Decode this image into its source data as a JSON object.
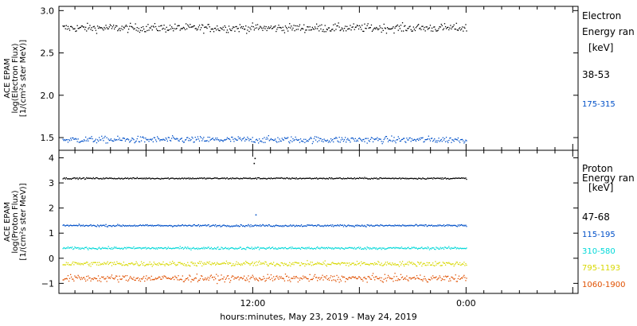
{
  "chart_data": [
    {
      "type": "scatter",
      "panel": "electron",
      "ylabel_lines": [
        "ACE EPAM",
        "log(Electron Flux)",
        "[1/(cm²s ster MeV)]"
      ],
      "ylim": [
        1.35,
        3.05
      ],
      "yticks": [
        {
          "value": 3.0,
          "label": "3.0"
        },
        {
          "value": 2.5,
          "label": "2.5"
        },
        {
          "value": 2.0,
          "label": "2.0"
        },
        {
          "value": 1.5,
          "label": "1.5"
        }
      ],
      "legend": {
        "title_lines": [
          "Electron",
          "Energy ran",
          "[keV]"
        ],
        "placement": "right"
      },
      "series": [
        {
          "name": "38-53",
          "color": "#000000",
          "mean": 2.8,
          "noise": 0.05,
          "x_end_hour": 24.0
        },
        {
          "name": "175-315",
          "color": "#0050c8",
          "mean": 1.48,
          "noise": 0.04,
          "x_end_hour": 24.0
        }
      ]
    },
    {
      "type": "scatter",
      "panel": "proton",
      "ylabel_lines": [
        "ACE EPAM",
        "log(Proton Flux)",
        "[1/(cm²s ster MeV)]"
      ],
      "ylim": [
        -1.4,
        4.3
      ],
      "yticks": [
        {
          "value": 4,
          "label": "4"
        },
        {
          "value": 3,
          "label": "3"
        },
        {
          "value": 2,
          "label": "2"
        },
        {
          "value": 1,
          "label": "1"
        },
        {
          "value": 0,
          "label": "0"
        },
        {
          "value": -1,
          "label": "−1"
        }
      ],
      "legend": {
        "title_lines": [
          "Proton",
          "Energy ran",
          "[keV]"
        ],
        "placement": "right"
      },
      "series": [
        {
          "name": "47-68",
          "color": "#000000",
          "mean": 3.2,
          "noise": 0.03,
          "x_end_hour": 24.0,
          "spike": [
            {
              "hour": 12.05,
              "value": 3.8
            },
            {
              "hour": 12.1,
              "value": 4.0
            }
          ]
        },
        {
          "name": "115-195",
          "color": "#0050c8",
          "mean": 1.32,
          "noise": 0.04,
          "x_end_hour": 24.0,
          "spike": [
            {
              "hour": 12.15,
              "value": 1.75
            }
          ]
        },
        {
          "name": "310-580",
          "color": "#00d8d8",
          "mean": 0.42,
          "noise": 0.05,
          "x_end_hour": 24.0
        },
        {
          "name": "795-1193",
          "color": "#d8d800",
          "mean": -0.2,
          "noise": 0.1,
          "x_end_hour": 24.0
        },
        {
          "name": "1060-1900",
          "color": "#e05000",
          "mean": -0.78,
          "noise": 0.14,
          "x_end_hour": 24.0
        }
      ]
    }
  ],
  "x_axis": {
    "range_hours": [
      1.1,
      30.3
    ],
    "ticks": [
      {
        "hour": 12,
        "label": "12:00"
      },
      {
        "hour": 24,
        "label": "0:00"
      }
    ],
    "label": "hours:minutes, May 23, 2019 - May 24, 2019"
  }
}
